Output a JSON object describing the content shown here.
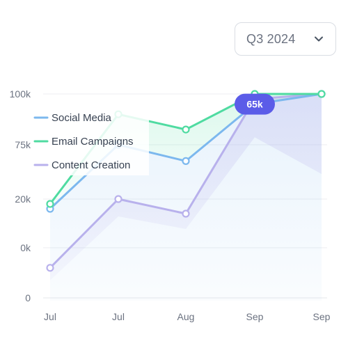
{
  "period_select": {
    "value": "Q3 2024",
    "icon": "chevron-down-icon"
  },
  "chart_data": {
    "type": "line",
    "categories": [
      "Jul",
      "Jul",
      "Aug",
      "Sep",
      "Sep"
    ],
    "y_tick_labels": [
      "0",
      "0k",
      "20k",
      "75k",
      "100k"
    ],
    "series": [
      {
        "name": "Social Media",
        "color": "#7cb8ee",
        "values": [
          1.8,
          3.0,
          2.7,
          3.8,
          5.0
        ]
      },
      {
        "name": "Email Campaigns",
        "color": "#4fdba1",
        "values": [
          1.9,
          3.6,
          3.3,
          4.7,
          6.0
        ]
      },
      {
        "name": "Content Creation",
        "color": "#b8b1ec",
        "values": [
          0.6,
          2.0,
          1.7,
          3.9,
          5.0
        ]
      }
    ],
    "callout": {
      "text": "65k",
      "series": "Social Media",
      "index": 3,
      "color": "#5b5ce8"
    },
    "legend_placement": "top-left",
    "grid": true
  }
}
